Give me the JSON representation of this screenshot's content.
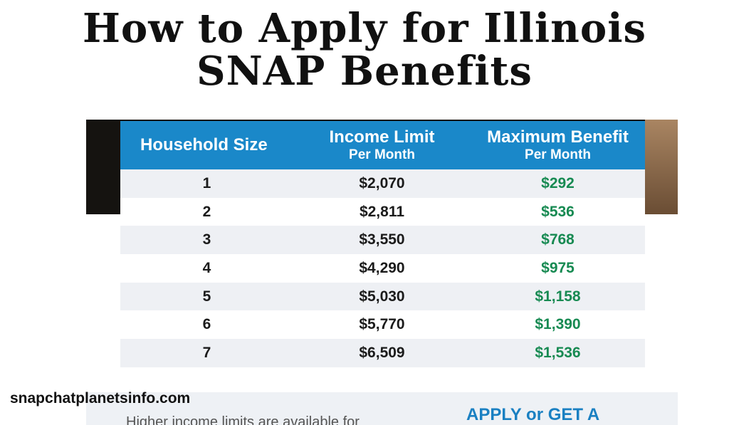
{
  "title": {
    "line1": "How to Apply for Illinois",
    "line2": "SNAP Benefits"
  },
  "table": {
    "headers": [
      {
        "main": "Household Size",
        "sub": ""
      },
      {
        "main": "Income Limit",
        "sub": "Per Month"
      },
      {
        "main": "Maximum Benefit",
        "sub": "Per Month"
      }
    ],
    "rows": [
      {
        "size": "1",
        "income": "$2,070",
        "benefit": "$292"
      },
      {
        "size": "2",
        "income": "$2,811",
        "benefit": "$536"
      },
      {
        "size": "3",
        "income": "$3,550",
        "benefit": "$768"
      },
      {
        "size": "4",
        "income": "$4,290",
        "benefit": "$975"
      },
      {
        "size": "5",
        "income": "$5,030",
        "benefit": "$1,158"
      },
      {
        "size": "6",
        "income": "$5,770",
        "benefit": "$1,390"
      },
      {
        "size": "7",
        "income": "$6,509",
        "benefit": "$1,536"
      }
    ]
  },
  "site": "snapchatplanetsinfo.com",
  "bottom": {
    "left_text": "Higher income limits are available for",
    "right_text": "APPLY or GET A"
  },
  "colors": {
    "header_bg": "#1a88c9",
    "benefit_text": "#178a52",
    "stripe": "#eef0f4"
  }
}
